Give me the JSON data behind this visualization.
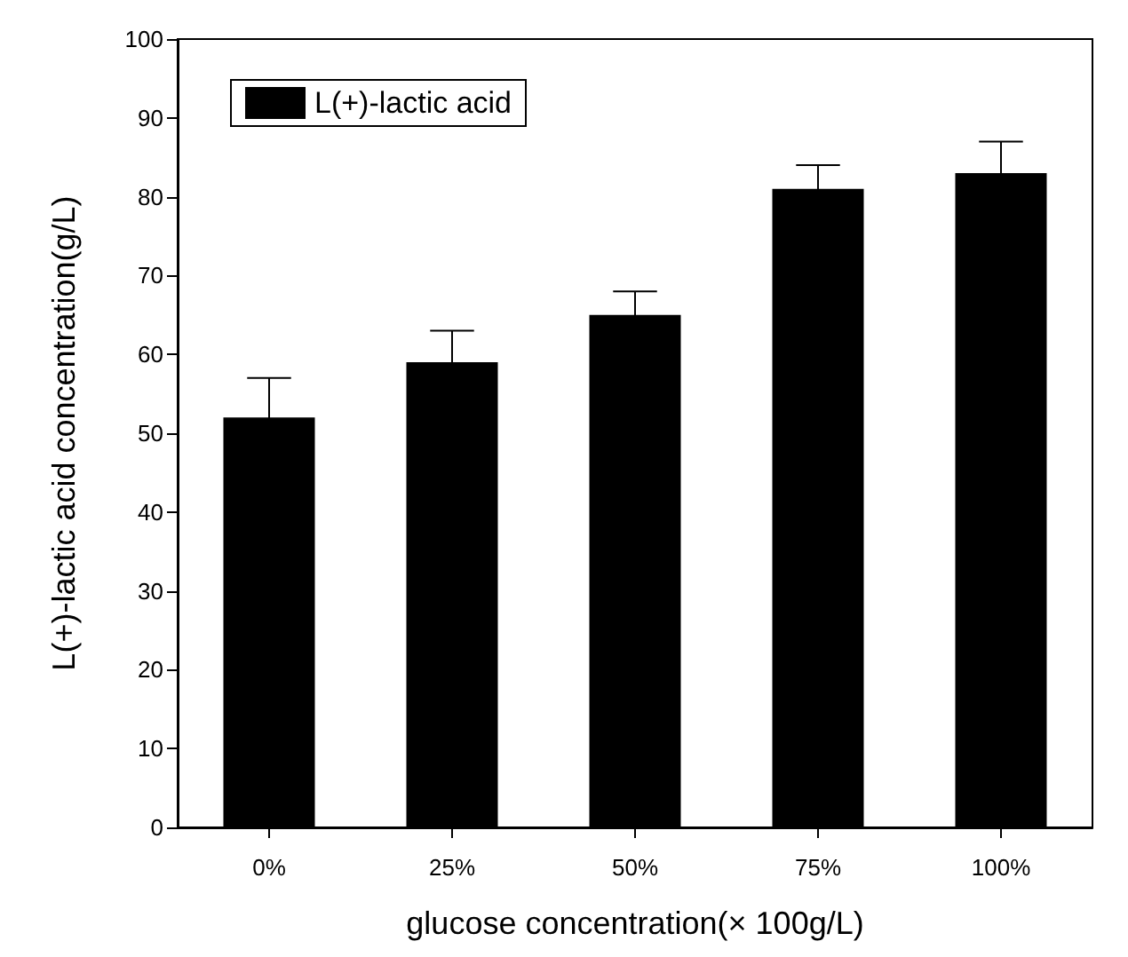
{
  "chart_data": {
    "type": "bar",
    "xlabel": "glucose concentration(× 100g/L)",
    "ylabel": "L(+)-lactic acid concentration(g/L)",
    "categories": [
      "0%",
      "25%",
      "50%",
      "75%",
      "100%"
    ],
    "series": [
      {
        "name": "L(+)-lactic acid",
        "color": "#000000",
        "values": [
          52,
          59,
          65,
          81,
          83
        ],
        "errors": [
          5,
          4,
          3,
          3,
          4
        ]
      }
    ],
    "ylim": [
      0,
      100
    ],
    "yticks": [
      0,
      10,
      20,
      30,
      40,
      50,
      60,
      70,
      80,
      90,
      100
    ],
    "grid": false,
    "legend": "top left"
  }
}
